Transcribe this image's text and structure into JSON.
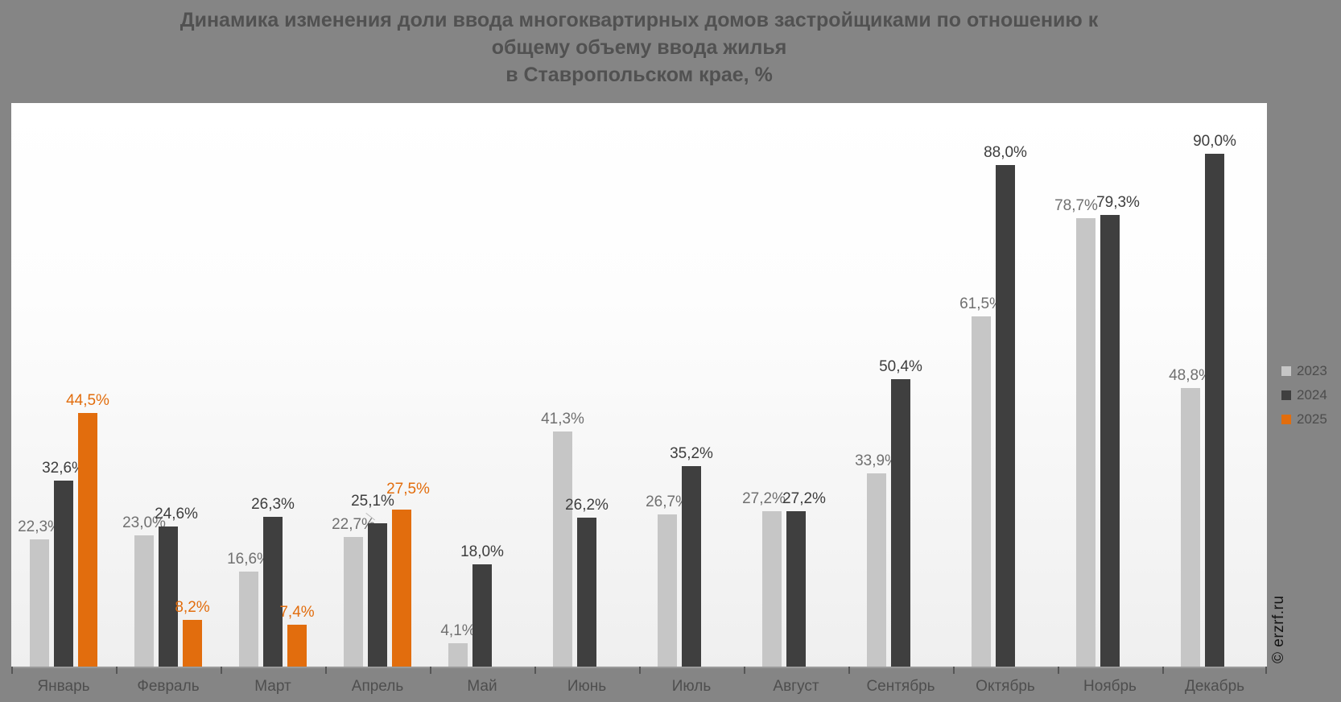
{
  "title": {
    "line1": "Динамика изменения доли ввода многоквартирных домов застройщиками по отношению к",
    "line2": "общему объему ввода жилья",
    "line3": "в Ставропольском крае, %"
  },
  "watermark": "© erzrf.ru",
  "legend": [
    {
      "label": "2023",
      "color": "#c6c6c6"
    },
    {
      "label": "2024",
      "color": "#3f3f3f"
    },
    {
      "label": "2025",
      "color": "#e26d0d"
    }
  ],
  "chart_data": {
    "type": "bar",
    "title": "Динамика изменения доли ввода многоквартирных домов застройщиками по отношению к общему объему ввода жилья в Ставропольском крае, %",
    "xlabel": "",
    "ylabel": "%",
    "ylim": [
      0,
      99
    ],
    "grid": false,
    "legend_position": "right",
    "value_label_format": "one-decimal-comma-percent",
    "categories": [
      "Январь",
      "Февраль",
      "Март",
      "Апрель",
      "Май",
      "Июнь",
      "Июль",
      "Август",
      "Сентябрь",
      "Октябрь",
      "Ноябрь",
      "Декабрь"
    ],
    "series": [
      {
        "name": "2023",
        "color": "#c6c6c6",
        "label_color": "#707070",
        "values": [
          22.3,
          23.0,
          16.6,
          22.7,
          4.1,
          41.3,
          26.7,
          27.2,
          33.9,
          61.5,
          78.7,
          48.8
        ]
      },
      {
        "name": "2024",
        "color": "#3f3f3f",
        "label_color": "#3d3d3d",
        "values": [
          32.6,
          24.6,
          26.3,
          25.1,
          18.0,
          26.2,
          35.2,
          27.2,
          50.4,
          88.0,
          79.3,
          90.0
        ]
      },
      {
        "name": "2025",
        "color": "#e26d0d",
        "label_color": "#e26d0d",
        "values": [
          44.5,
          8.2,
          7.4,
          27.5,
          null,
          null,
          null,
          null,
          null,
          null,
          null,
          null
        ]
      }
    ]
  }
}
